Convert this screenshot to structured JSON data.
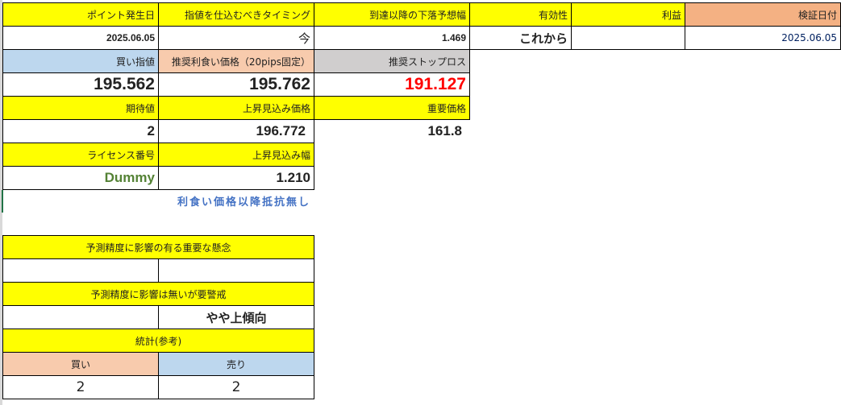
{
  "row1": {
    "point_date_label": "ポイント発生日",
    "timing_label": "指値を仕込むべきタイミング",
    "drop_label": "到達以降の下落予想幅",
    "validity_label": "有効性",
    "profit_label": "利益",
    "verify_date_label": "検証日付"
  },
  "row2": {
    "point_date": "2025.06.05",
    "timing": "今",
    "drop": "1.469",
    "validity": "これから",
    "profit": "",
    "verify_date": "2025.06.05"
  },
  "row3": {
    "buy_limit_label": "買い指値",
    "take_profit_label": "推奨利食い価格（20pips固定）",
    "stop_loss_label": "推奨ストップロス"
  },
  "row4": {
    "buy_limit": "195.562",
    "take_profit": "195.762",
    "stop_loss": "191.127"
  },
  "row5": {
    "expected_label": "期待値",
    "rise_price_label": "上昇見込み価格",
    "key_price_label": "重要価格"
  },
  "row6": {
    "expected": "2",
    "rise_price": "196.772",
    "key_price": "161.8"
  },
  "row7": {
    "license_label": "ライセンス番号",
    "rise_width_label": "上昇見込み幅"
  },
  "row8": {
    "license": "Dummy",
    "rise_width": "1.210"
  },
  "note": "利食い価格以降抵抗無し",
  "concerns": {
    "major_label": "予測精度に影響の有る重要な懸念",
    "major_a": "",
    "major_b": "",
    "minor_label": "予測精度に影響は無いが要警戒",
    "minor_a": "",
    "minor_b": "やや上傾向",
    "stats_label": "統計(参考)",
    "buy_label": "買い",
    "sell_label": "売り",
    "buy_count": "2",
    "sell_count": "2"
  },
  "colors": {
    "yellow": "#ffff00",
    "blue": "#bdd7ee",
    "peach": "#f8cbad",
    "salmon": "#f4b183",
    "gray": "#d0cece",
    "red": "#ff0000",
    "green": "#548235",
    "note_blue": "#4472c4"
  }
}
